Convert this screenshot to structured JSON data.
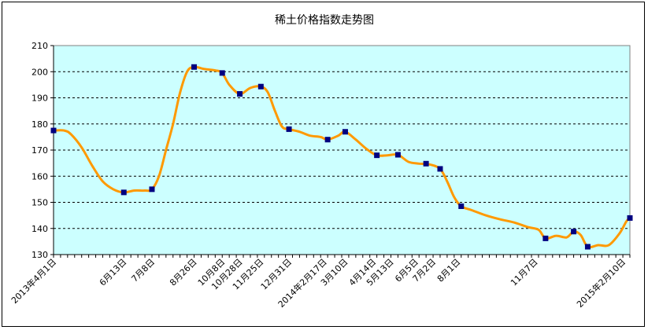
{
  "chart_data": {
    "type": "line",
    "title": "稀土价格指数走势图",
    "ylim": [
      130,
      210
    ],
    "y_ticks": [
      130,
      140,
      150,
      160,
      170,
      180,
      190,
      200,
      210
    ],
    "grid": "horizontal dashed",
    "legend": "none",
    "colors": {
      "plot_background": "#ccffff",
      "line": "#ff9900",
      "marker": "#000080",
      "grid": "#000000"
    },
    "x_tick_labels": [
      "2013年4月1日",
      "6月13日",
      "7月8日",
      "8月26日",
      "10月8日",
      "10月28日",
      "11月25日",
      "12月31日",
      "2014年2月17日",
      "3月10日",
      "4月14日",
      "5月13日",
      "6月5日",
      "7月2日",
      "8月1日",
      "11月7日",
      "2015年2月10日"
    ],
    "series": [
      {
        "values": [
          {
            "x": 0,
            "y": 177.5
          },
          {
            "x": 3,
            "y": 177.5
          },
          {
            "x": 5,
            "y": 176
          },
          {
            "x": 8,
            "y": 171
          },
          {
            "x": 11,
            "y": 164
          },
          {
            "x": 14,
            "y": 158
          },
          {
            "x": 17,
            "y": 155
          },
          {
            "x": 20,
            "y": 153.8
          },
          {
            "x": 23,
            "y": 154.5
          },
          {
            "x": 26,
            "y": 154.5
          },
          {
            "x": 28,
            "y": 155
          },
          {
            "x": 30,
            "y": 160
          },
          {
            "x": 32,
            "y": 170
          },
          {
            "x": 34,
            "y": 180
          },
          {
            "x": 36,
            "y": 192
          },
          {
            "x": 38,
            "y": 200
          },
          {
            "x": 40,
            "y": 201.8
          },
          {
            "x": 43,
            "y": 201
          },
          {
            "x": 46,
            "y": 200.5
          },
          {
            "x": 48,
            "y": 199.5
          },
          {
            "x": 50,
            "y": 195
          },
          {
            "x": 53,
            "y": 191.5
          },
          {
            "x": 56,
            "y": 193.8
          },
          {
            "x": 59,
            "y": 194.3
          },
          {
            "x": 61,
            "y": 192
          },
          {
            "x": 63,
            "y": 185
          },
          {
            "x": 65,
            "y": 179
          },
          {
            "x": 67,
            "y": 178
          },
          {
            "x": 70,
            "y": 177
          },
          {
            "x": 73,
            "y": 175.5
          },
          {
            "x": 76,
            "y": 175
          },
          {
            "x": 78,
            "y": 174
          },
          {
            "x": 81,
            "y": 175.5
          },
          {
            "x": 83,
            "y": 177
          },
          {
            "x": 86,
            "y": 174
          },
          {
            "x": 89,
            "y": 170.5
          },
          {
            "x": 92,
            "y": 168
          },
          {
            "x": 95,
            "y": 168
          },
          {
            "x": 98,
            "y": 168.2
          },
          {
            "x": 101,
            "y": 165.5
          },
          {
            "x": 104,
            "y": 164.8
          },
          {
            "x": 107,
            "y": 164.5
          },
          {
            "x": 110,
            "y": 162.8
          },
          {
            "x": 112,
            "y": 158
          },
          {
            "x": 114,
            "y": 152
          },
          {
            "x": 116,
            "y": 148.5
          },
          {
            "x": 119,
            "y": 147
          },
          {
            "x": 123,
            "y": 145
          },
          {
            "x": 127,
            "y": 143.5
          },
          {
            "x": 131,
            "y": 142.3
          },
          {
            "x": 135,
            "y": 140.5
          },
          {
            "x": 138,
            "y": 139.5
          },
          {
            "x": 140,
            "y": 136.2
          },
          {
            "x": 143,
            "y": 137.2
          },
          {
            "x": 146,
            "y": 136.6
          },
          {
            "x": 148,
            "y": 138.8
          },
          {
            "x": 150,
            "y": 137.5
          },
          {
            "x": 152,
            "y": 133
          },
          {
            "x": 155,
            "y": 133.6
          },
          {
            "x": 158,
            "y": 133.6
          },
          {
            "x": 161,
            "y": 138
          },
          {
            "x": 163,
            "y": 142.7
          },
          {
            "x": 164,
            "y": 144
          }
        ],
        "markers": [
          {
            "x": 0,
            "y": 177.5
          },
          {
            "x": 20,
            "y": 153.8
          },
          {
            "x": 28,
            "y": 155
          },
          {
            "x": 40,
            "y": 201.8
          },
          {
            "x": 48,
            "y": 199.5
          },
          {
            "x": 53,
            "y": 191.5
          },
          {
            "x": 59,
            "y": 194.3
          },
          {
            "x": 67,
            "y": 178
          },
          {
            "x": 78,
            "y": 174
          },
          {
            "x": 83,
            "y": 177
          },
          {
            "x": 92,
            "y": 168
          },
          {
            "x": 98,
            "y": 168.2
          },
          {
            "x": 106,
            "y": 164.8
          },
          {
            "x": 110,
            "y": 162.8
          },
          {
            "x": 116,
            "y": 148.5
          },
          {
            "x": 140,
            "y": 136.2
          },
          {
            "x": 148,
            "y": 138.8
          },
          {
            "x": 152,
            "y": 133
          },
          {
            "x": 164,
            "y": 144
          }
        ]
      }
    ],
    "x_domain": [
      0,
      164
    ],
    "x_tick_positions": [
      0,
      20,
      28,
      40,
      48,
      53,
      59,
      67,
      77,
      83,
      91,
      96,
      103,
      108,
      115,
      137,
      162
    ]
  }
}
